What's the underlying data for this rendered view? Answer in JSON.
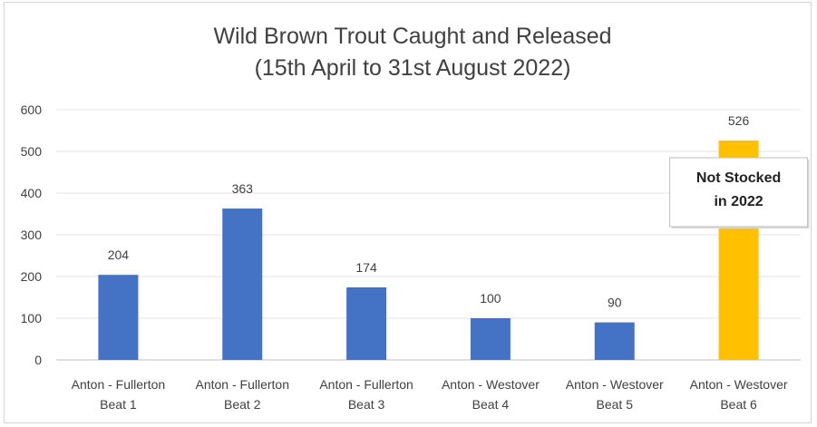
{
  "chart_data": {
    "type": "bar",
    "title": "Wild Brown Trout Caught and Released",
    "subtitle": "(15th April to 31st August 2022)",
    "categories": [
      [
        "Anton - Fullerton",
        "Beat 1"
      ],
      [
        "Anton - Fullerton",
        "Beat 2"
      ],
      [
        "Anton - Fullerton",
        "Beat 3"
      ],
      [
        "Anton - Westover",
        "Beat 4"
      ],
      [
        "Anton - Westover",
        "Beat 5"
      ],
      [
        "Anton - Westover",
        "Beat 6"
      ]
    ],
    "values": [
      204,
      363,
      174,
      100,
      90,
      526
    ],
    "bar_colors": [
      "#4472C4",
      "#4472C4",
      "#4472C4",
      "#4472C4",
      "#4472C4",
      "#FFC000"
    ],
    "ylim": [
      0,
      600
    ],
    "yticks": [
      0,
      100,
      200,
      300,
      400,
      500,
      600
    ],
    "grid": true,
    "annotation": {
      "category_index": 5,
      "lines": [
        "Not Stocked",
        "in 2022"
      ]
    }
  }
}
